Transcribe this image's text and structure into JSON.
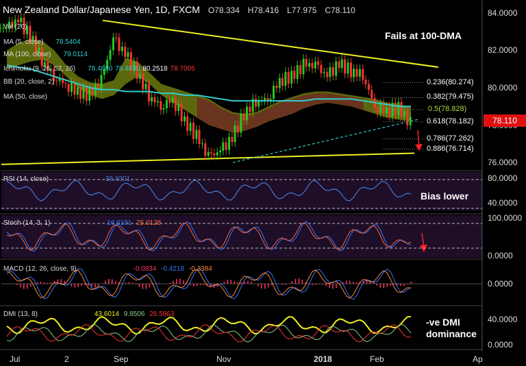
{
  "header": {
    "title": "New Zealand Dollar/Japanese Yen, 1D, FXCM",
    "open": "O78.334",
    "high": "H78.416",
    "low": "L77.975",
    "close": "C78.110"
  },
  "price_label": "78.110",
  "annotations": {
    "fails": "Fails at 100-DMA",
    "bias": "Bias lower",
    "dmi": "-ve DMI dominance"
  },
  "indicators": [
    {
      "label": "Vol (20)",
      "values": []
    },
    {
      "label": "MA (5, close)",
      "values": [
        "78.5404"
      ]
    },
    {
      "label": "MA (100, close)",
      "values": [
        "79.0114"
      ]
    },
    {
      "label": "Ichimoku (9, 26, 52, 26)",
      "values": [
        "78.4680",
        "78.4830",
        "80.2518",
        "78.7005"
      ]
    },
    {
      "label": "BB (20, close, 2)",
      "values": []
    },
    {
      "label": "MA (50, close)",
      "values": []
    }
  ],
  "panes": {
    "rsi": {
      "label": "RSI (14, close)",
      "values": [
        "38.9301"
      ]
    },
    "stoch": {
      "label": "Stoch (14, 3, 1)",
      "values": [
        "16.0191",
        "25.0128"
      ]
    },
    "macd": {
      "label": "MACD (12, 26, close, 9)",
      "values": [
        "-0.0834",
        "-0.4218",
        "-0.3384"
      ]
    },
    "dmi": {
      "label": "DMI (13, 8)",
      "values": [
        "43.6014",
        "9.8506",
        "28.5863"
      ]
    }
  },
  "fib_levels": [
    {
      "label": "0.236(80.274)",
      "value": 80.274
    },
    {
      "label": "0.382(79.475)",
      "value": 79.475
    },
    {
      "label": "0.5(78.828)",
      "value": 78.828
    },
    {
      "label": "0.618(78.182)",
      "value": 78.182
    },
    {
      "label": "0.786(77.262)",
      "value": 77.262
    },
    {
      "label": "0.886(76.714)",
      "value": 76.714
    }
  ],
  "y_ticks": {
    "price": [
      "84.0000",
      "82.0000",
      "80.0000",
      "78.0000",
      "76.0000"
    ],
    "rsi": [
      "80.0000",
      "40.0000"
    ],
    "stoch": [
      "100.0000",
      "0.0000"
    ],
    "macd": [
      "0.0000"
    ],
    "dmi": [
      "40.0000",
      "0.0000"
    ]
  },
  "x_ticks": [
    "Jul",
    "2",
    "Sep",
    "Nov",
    "2018",
    "Feb",
    "Ap"
  ],
  "colors": {
    "bull": "#22cc22",
    "bear": "#ff3333",
    "ma100": "#33cccc",
    "trend": "#f0f020",
    "kumo_bull": "#7a8a10",
    "kumo_bear": "#6a3020",
    "rsi": "#4a7acc",
    "stoch_k": "#3377ff",
    "stoch_d": "#ff6633",
    "dmi_adx": "#f0f020",
    "dmi_plus": "#88cc88",
    "dmi_minus": "#ff3333"
  },
  "chart_data": {
    "type": "line",
    "title": "New Zealand Dollar/Japanese Yen, 1D, FXCM",
    "ylim": [
      75.6,
      84.4
    ],
    "x": [
      "Jul",
      "2",
      "Sep",
      "Nov",
      "2018",
      "Feb"
    ],
    "series": [
      {
        "name": "MA (100, close)",
        "values": [
          81.2,
          81.0,
          79.8,
          79.6,
          79.2,
          79.0
        ]
      }
    ],
    "close_path": [
      83.2,
      83.6,
      82.8,
      81.5,
      80.6,
      80.2,
      79.8,
      79.6,
      80.4,
      82.6,
      81.8,
      80.8,
      79.6,
      79.0,
      79.4,
      78.2,
      77.4,
      76.3,
      76.6,
      77.3,
      78.6,
      79.3,
      79.4,
      80.4,
      80.6,
      81.2,
      81.2,
      80.6,
      81.3,
      80.9,
      80.7,
      79.0,
      78.8,
      78.9,
      78.1
    ],
    "fib": [
      80.274,
      79.475,
      78.828,
      78.182,
      77.262,
      76.714
    ],
    "last": 78.11
  }
}
